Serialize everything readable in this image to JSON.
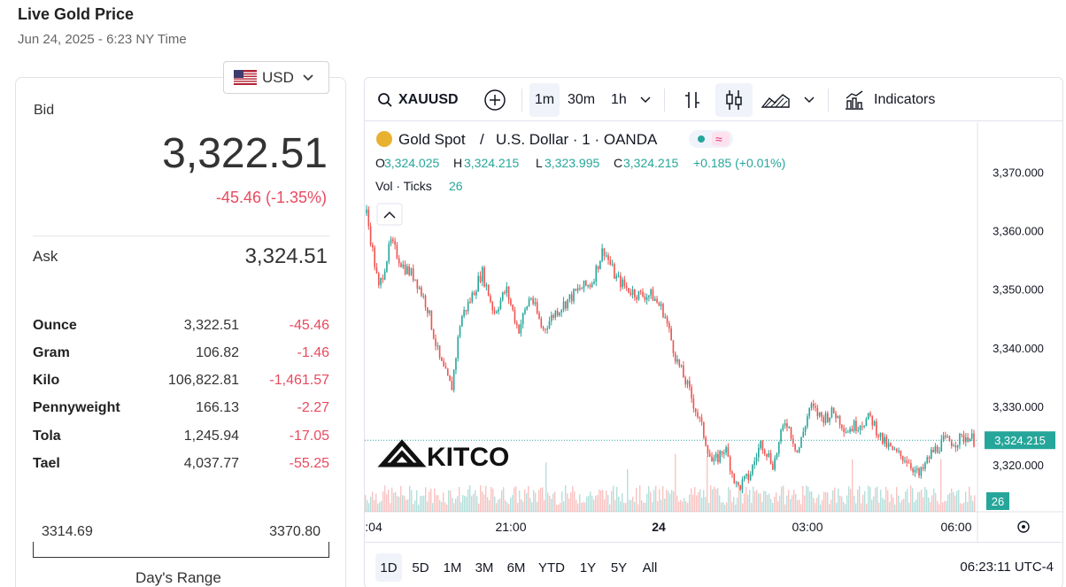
{
  "page": {
    "title": "Live Gold Price",
    "date": "Jun 24, 2025 - 6:23 NY Time"
  },
  "currency": {
    "selected": "USD",
    "icon": "us-flag-icon"
  },
  "bid": {
    "label": "Bid",
    "value": "3,322.51",
    "change": "-45.46 (-1.35%)"
  },
  "ask": {
    "label": "Ask",
    "value": "3,324.51"
  },
  "units": [
    {
      "name": "Ounce",
      "price": "3,322.51",
      "change": "-45.46"
    },
    {
      "name": "Gram",
      "price": "106.82",
      "change": "-1.46"
    },
    {
      "name": "Kilo",
      "price": "106,822.81",
      "change": "-1,461.57"
    },
    {
      "name": "Pennyweight",
      "price": "166.13",
      "change": "-2.27"
    },
    {
      "name": "Tola",
      "price": "1,245.94",
      "change": "-17.05"
    },
    {
      "name": "Tael",
      "price": "4,037.77",
      "change": "-55.25"
    }
  ],
  "day_range": {
    "low": "3314.69",
    "high": "3370.80",
    "label": "Day's Range"
  },
  "toolbar": {
    "symbol": "XAUUSD",
    "intervals": [
      "1m",
      "30m",
      "1h"
    ],
    "active_interval": "1m",
    "indicators_label": "Indicators"
  },
  "legend": {
    "title": "Gold Spot",
    "sep": "/",
    "quote": "U.S. Dollar · 1 · OANDA",
    "o_label": "O",
    "o": "3,324.025",
    "h_label": "H",
    "h": "3,324.215",
    "l_label": "L",
    "l": "3,323.995",
    "c_label": "C",
    "c": "3,324.215",
    "chg": "+0.185 (+0.01%)",
    "vol_label": "Vol · Ticks",
    "vol": "26"
  },
  "watermark": {
    "text": "KITCO"
  },
  "ranges": [
    "1D",
    "5D",
    "1M",
    "3M",
    "6M",
    "YTD",
    "1Y",
    "5Y",
    "All"
  ],
  "active_range": "1D",
  "clock": "06:23:11 UTC-4",
  "colors": {
    "up": "#26a69a",
    "down": "#ef5350",
    "accent": "#e84a5f"
  },
  "chart_data": {
    "type": "line",
    "y_ticks": [
      "3,370.000",
      "3,360.000",
      "3,350.000",
      "3,340.000",
      "3,330.000",
      "3,320.000"
    ],
    "x_ticks": [
      ":04",
      "21:00",
      "24",
      "03:00",
      "06:00"
    ],
    "ylim": [
      3312,
      3374
    ],
    "price_label": "3,324.215",
    "price_value": 3324.215,
    "volume_label": "26",
    "series": [
      {
        "x": [
          0,
          0.02,
          0.04,
          0.06,
          0.08,
          0.1,
          0.12,
          0.14,
          0.155,
          0.17,
          0.19,
          0.21,
          0.23,
          0.25,
          0.27,
          0.29,
          0.31,
          0.33,
          0.35,
          0.37,
          0.39,
          0.41,
          0.43,
          0.45,
          0.47,
          0.49,
          0.51,
          0.53,
          0.55,
          0.57,
          0.59,
          0.61,
          0.63,
          0.65,
          0.67,
          0.69,
          0.71,
          0.73,
          0.75,
          0.77,
          0.79,
          0.81,
          0.83,
          0.85,
          0.87,
          0.89,
          0.91,
          0.93,
          0.95,
          0.97,
          0.99,
          1
        ],
        "values": [
          3363,
          3350,
          3358,
          3354,
          3352,
          3347,
          3338,
          3333,
          3345,
          3348,
          3353,
          3346,
          3350,
          3343,
          3349,
          3343,
          3346,
          3348,
          3350,
          3351,
          3357,
          3352,
          3350,
          3349,
          3349,
          3346,
          3338,
          3333,
          3327,
          3320,
          3323,
          3316,
          3318,
          3324,
          3320,
          3328,
          3322,
          3330,
          3328,
          3329,
          3326,
          3327,
          3328,
          3324,
          3322,
          3321,
          3318,
          3322,
          3324,
          3324,
          3325,
          3324.2
        ]
      }
    ]
  }
}
